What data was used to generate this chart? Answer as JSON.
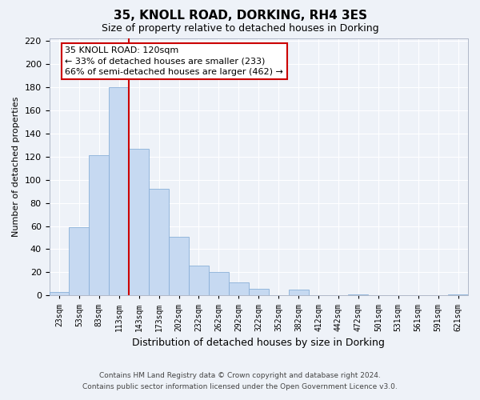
{
  "title": "35, KNOLL ROAD, DORKING, RH4 3ES",
  "subtitle": "Size of property relative to detached houses in Dorking",
  "xlabel": "Distribution of detached houses by size in Dorking",
  "ylabel": "Number of detached properties",
  "bar_values": [
    3,
    59,
    121,
    180,
    127,
    92,
    51,
    26,
    20,
    11,
    6,
    0,
    5,
    0,
    0,
    1,
    0,
    0,
    0,
    0,
    1
  ],
  "bar_labels": [
    "23sqm",
    "53sqm",
    "83sqm",
    "113sqm",
    "143sqm",
    "173sqm",
    "202sqm",
    "232sqm",
    "262sqm",
    "292sqm",
    "322sqm",
    "352sqm",
    "382sqm",
    "412sqm",
    "442sqm",
    "472sqm",
    "501sqm",
    "531sqm",
    "561sqm",
    "591sqm",
    "621sqm"
  ],
  "bar_color": "#c6d9f1",
  "bar_edge_color": "#8ab0d8",
  "vline_color": "#cc0000",
  "ylim": [
    0,
    222
  ],
  "yticks": [
    0,
    20,
    40,
    60,
    80,
    100,
    120,
    140,
    160,
    180,
    200,
    220
  ],
  "annotation_title": "35 KNOLL ROAD: 120sqm",
  "annotation_line1": "← 33% of detached houses are smaller (233)",
  "annotation_line2": "66% of semi-detached houses are larger (462) →",
  "annotation_box_color": "#ffffff",
  "annotation_box_edge": "#cc0000",
  "footer_line1": "Contains HM Land Registry data © Crown copyright and database right 2024.",
  "footer_line2": "Contains public sector information licensed under the Open Government Licence v3.0.",
  "background_color": "#eef2f8",
  "grid_color": "#ffffff",
  "spine_color": "#b0b8c8"
}
